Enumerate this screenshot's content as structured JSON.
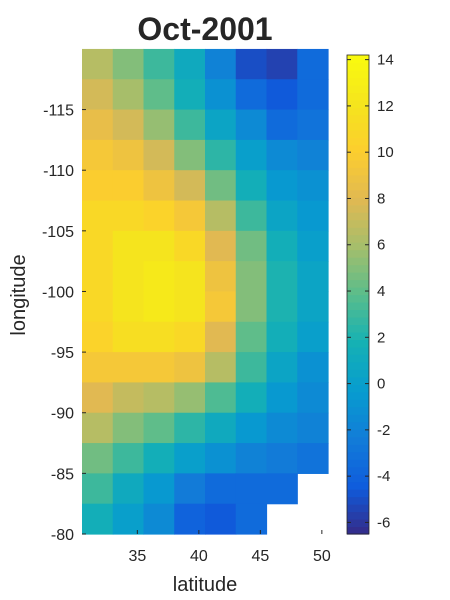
{
  "chart_data": {
    "type": "heatmap",
    "title": "Oct-2001",
    "xlabel": "latitude",
    "ylabel": "longitude",
    "xlim": [
      30.5,
      50.5
    ],
    "ylim": [
      -80,
      -119.5
    ],
    "y_direction": "reversed (-80 at bottom, -119.5 at top)",
    "cell_size": 2.5,
    "x_centers": [
      31.75,
      34.25,
      36.75,
      39.25,
      41.75,
      44.25,
      46.75,
      49.25
    ],
    "y_centers": [
      -118.75,
      -116.25,
      -113.75,
      -111.25,
      -108.75,
      -106.25,
      -103.75,
      -101.25,
      -98.75,
      -96.25,
      -93.75,
      -91.25,
      -88.75,
      -86.25,
      -83.75,
      -81.25
    ],
    "x_ticks": [
      35,
      40,
      45,
      50
    ],
    "y_ticks": [
      -115,
      -110,
      -105,
      -100,
      -95,
      -90,
      -85,
      -80
    ],
    "values": [
      [
        6.5,
        5,
        3,
        1,
        -2,
        -5,
        -5.5,
        -3.5
      ],
      [
        7.5,
        6,
        4,
        1.5,
        -1,
        -3.5,
        -4.5,
        -3.5
      ],
      [
        8.5,
        7.5,
        5.5,
        3,
        0.5,
        -1.5,
        -3.5,
        -3
      ],
      [
        9.5,
        9,
        7.5,
        5,
        2.5,
        0,
        -1.5,
        -2
      ],
      [
        10,
        10,
        9,
        7.5,
        4.5,
        1.5,
        -0.5,
        -1
      ],
      [
        11,
        11,
        10.5,
        9.5,
        6.5,
        3,
        0.5,
        -0.5
      ],
      [
        11,
        12,
        12,
        11,
        8,
        4.5,
        1.5,
        0
      ],
      [
        11,
        12,
        12.5,
        12,
        9,
        5,
        2,
        0.5
      ],
      [
        11,
        12,
        12.5,
        12,
        9.5,
        5,
        2,
        0.5
      ],
      [
        10.5,
        11.5,
        11.5,
        11,
        8,
        4,
        1.5,
        0
      ],
      [
        9.5,
        9.5,
        9.5,
        9,
        6.5,
        3,
        0.5,
        -1
      ],
      [
        8,
        7,
        6.5,
        5.5,
        3.5,
        1.5,
        -0.5,
        -1.5
      ],
      [
        6.5,
        5,
        4,
        2.5,
        1,
        -0.5,
        -1.5,
        -2
      ],
      [
        4.5,
        3,
        1.5,
        0,
        -1,
        -2,
        -2.5,
        -3
      ],
      [
        3,
        1,
        -0.5,
        -2.5,
        -3.5,
        -3.5,
        -3.5,
        null
      ],
      [
        1.5,
        0,
        -1.5,
        -4,
        -4.5,
        -3.5,
        null,
        null
      ]
    ],
    "colorbar": {
      "min": -6.5,
      "max": 14.2,
      "ticks": [
        -6,
        -4,
        -2,
        0,
        2,
        4,
        6,
        8,
        10,
        12,
        14
      ],
      "colormap": "parula"
    }
  }
}
